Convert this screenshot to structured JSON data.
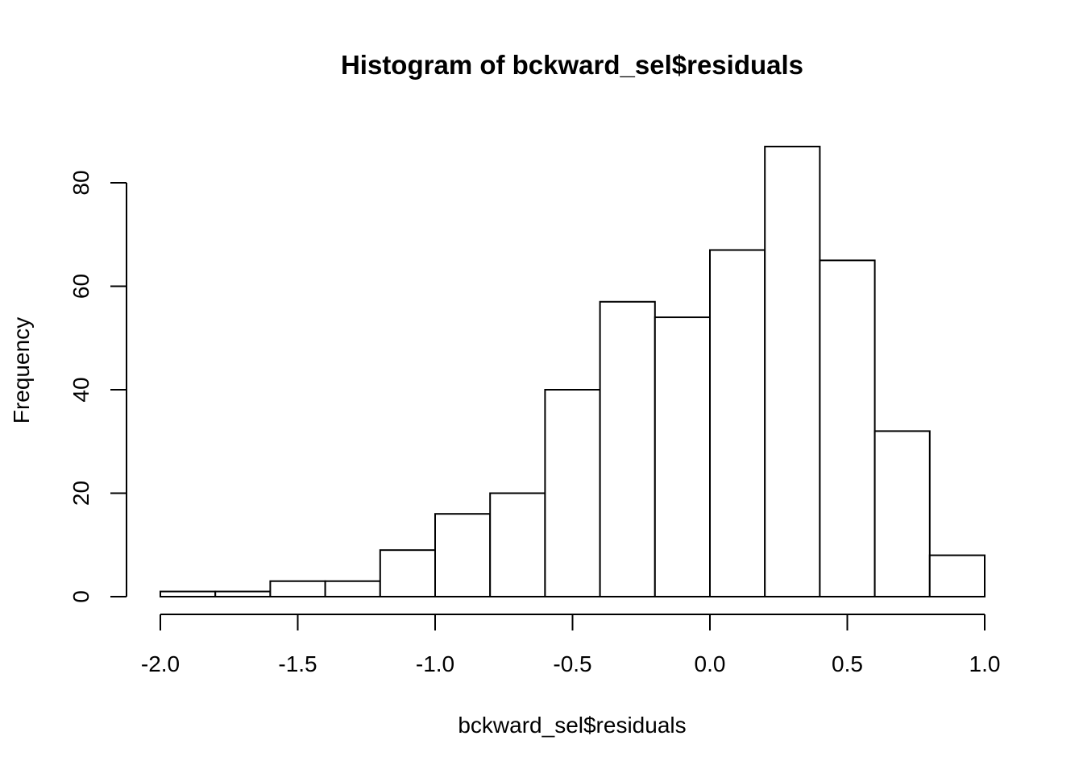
{
  "chart_data": {
    "type": "bar",
    "title": "Histogram of bckward_sel$residuals",
    "xlabel": "bckward_sel$residuals",
    "ylabel": "Frequency",
    "bins": [
      {
        "x0": -2.0,
        "x1": -1.8,
        "count": 1
      },
      {
        "x0": -1.8,
        "x1": -1.6,
        "count": 1
      },
      {
        "x0": -1.6,
        "x1": -1.4,
        "count": 3
      },
      {
        "x0": -1.4,
        "x1": -1.2,
        "count": 3
      },
      {
        "x0": -1.2,
        "x1": -1.0,
        "count": 9
      },
      {
        "x0": -1.0,
        "x1": -0.8,
        "count": 16
      },
      {
        "x0": -0.8,
        "x1": -0.6,
        "count": 20
      },
      {
        "x0": -0.6,
        "x1": -0.4,
        "count": 40
      },
      {
        "x0": -0.4,
        "x1": -0.2,
        "count": 57
      },
      {
        "x0": -0.2,
        "x1": 0.0,
        "count": 54
      },
      {
        "x0": 0.0,
        "x1": 0.2,
        "count": 67
      },
      {
        "x0": 0.2,
        "x1": 0.4,
        "count": 87
      },
      {
        "x0": 0.4,
        "x1": 0.6,
        "count": 65
      },
      {
        "x0": 0.6,
        "x1": 0.8,
        "count": 32
      },
      {
        "x0": 0.8,
        "x1": 1.0,
        "count": 8
      }
    ],
    "xlim": [
      -2.0,
      1.0
    ],
    "ylim": [
      0,
      80
    ],
    "xticks": [
      -2.0,
      -1.5,
      -1.0,
      -0.5,
      0.0,
      0.5,
      1.0
    ],
    "xtick_labels": [
      "-2.0",
      "-1.5",
      "-1.0",
      "-0.5",
      "0.0",
      "0.5",
      "1.0"
    ],
    "yticks": [
      0,
      20,
      40,
      60,
      80
    ],
    "ytick_labels": [
      "0",
      "20",
      "40",
      "60",
      "80"
    ],
    "grid": false,
    "legend": "none",
    "bar_fill": "#ffffff",
    "bar_stroke": "#000000"
  }
}
